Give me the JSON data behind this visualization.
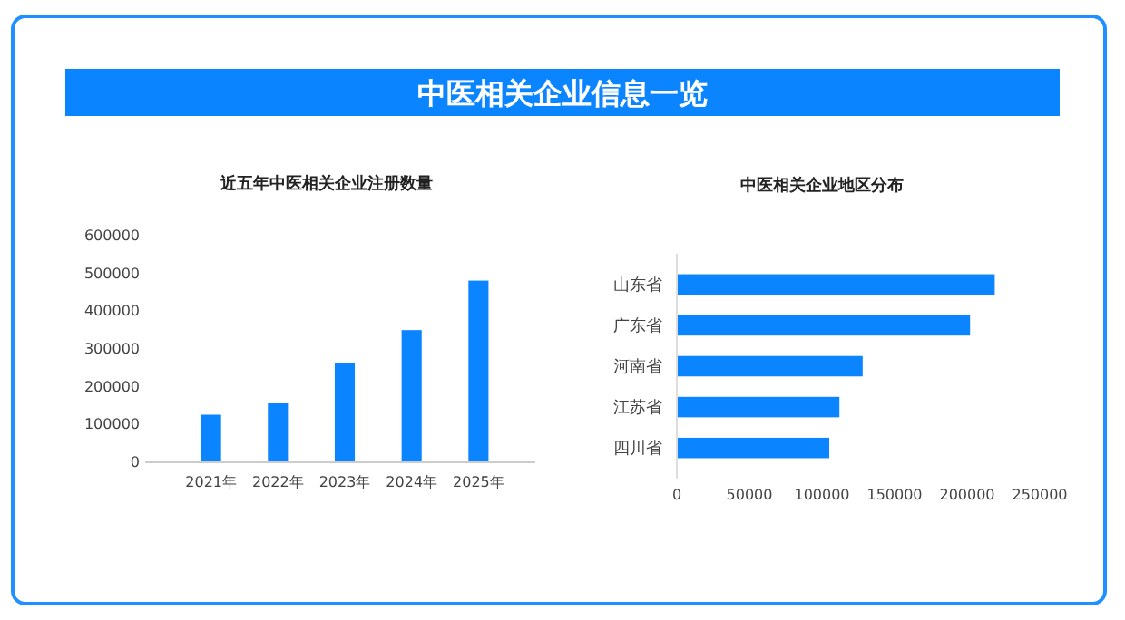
{
  "chart_data": [
    {
      "type": "other",
      "title": "中医相关企业信息一览"
    },
    {
      "type": "bar",
      "title": "近五年中医相关企业注册数量",
      "categories": [
        "2021年",
        "2022年",
        "2023年",
        "2024年",
        "2025年"
      ],
      "values": [
        126000,
        156000,
        262000,
        350000,
        481000
      ],
      "color": "#0a84ff",
      "ylim": [
        0,
        600000
      ],
      "yticks": [
        0,
        100000,
        200000,
        300000,
        400000,
        500000,
        600000
      ],
      "grid": false
    },
    {
      "type": "bar",
      "orientation": "horizontal",
      "title": "中医相关企业地区分布",
      "categories": [
        "山东省",
        "广东省",
        "河南省",
        "江苏省",
        "四川省"
      ],
      "values": [
        219000,
        202000,
        128000,
        112000,
        105000
      ],
      "color": "#0a84ff",
      "xlim": [
        0,
        250000
      ],
      "xticks": [
        0,
        50000,
        100000,
        150000,
        200000,
        250000
      ],
      "grid": false
    }
  ]
}
